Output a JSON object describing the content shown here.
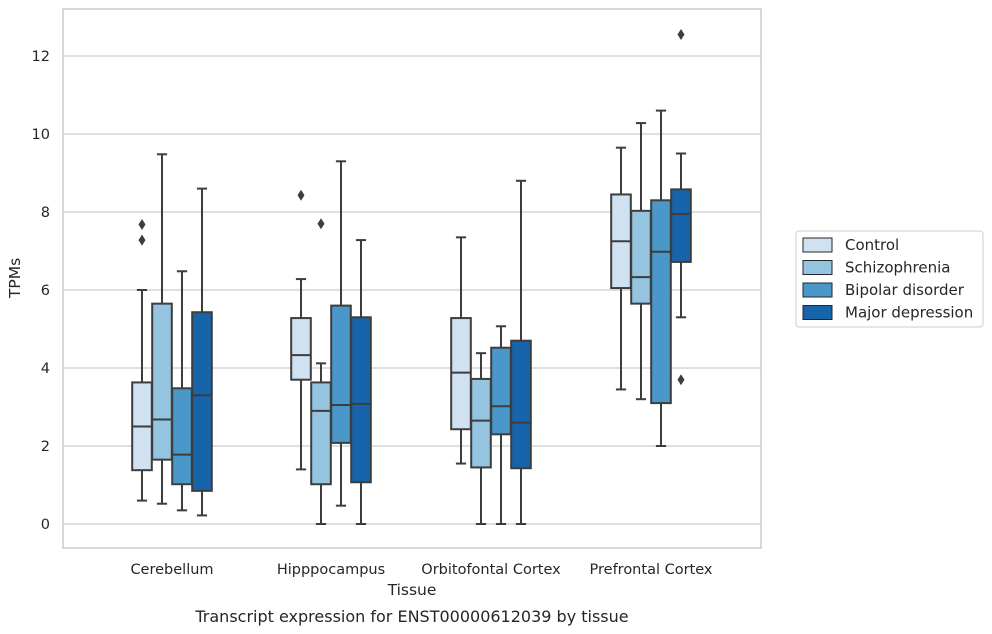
{
  "chart_data": {
    "type": "box",
    "caption": "Transcript expression for ENST00000612039 by tissue",
    "xlabel": "Tissue",
    "ylabel": "TPMs",
    "ylim": [
      -0.6,
      13.2
    ],
    "yticks": [
      0,
      2,
      4,
      6,
      8,
      10,
      12
    ],
    "grid": "horizontal",
    "legend_position": "right",
    "categories": [
      "Cerebellum",
      "Hipppocampus",
      "Orbitofontal Cortex",
      "Prefrontal Cortex"
    ],
    "series": [
      {
        "name": "Control",
        "color": "#d0e1f2",
        "boxes": [
          {
            "whislo": 0.6,
            "q1": 1.38,
            "med": 2.5,
            "q3": 3.63,
            "whishi": 6.0,
            "fliers": [
              7.28,
              7.68
            ]
          },
          {
            "whislo": 1.4,
            "q1": 3.7,
            "med": 4.33,
            "q3": 5.28,
            "whishi": 6.28,
            "fliers": [
              8.43
            ]
          },
          {
            "whislo": 1.55,
            "q1": 2.43,
            "med": 3.88,
            "q3": 5.28,
            "whishi": 7.35,
            "fliers": []
          },
          {
            "whislo": 3.45,
            "q1": 6.05,
            "med": 7.25,
            "q3": 8.45,
            "whishi": 9.65,
            "fliers": []
          }
        ]
      },
      {
        "name": "Schizophrenia",
        "color": "#94c4df",
        "boxes": [
          {
            "whislo": 0.52,
            "q1": 1.65,
            "med": 2.68,
            "q3": 5.65,
            "whishi": 9.48,
            "fliers": []
          },
          {
            "whislo": 0.0,
            "q1": 1.02,
            "med": 2.9,
            "q3": 3.63,
            "whishi": 4.12,
            "fliers": [
              7.7
            ]
          },
          {
            "whislo": 0.0,
            "q1": 1.45,
            "med": 2.65,
            "q3": 3.72,
            "whishi": 4.38,
            "fliers": []
          },
          {
            "whislo": 3.2,
            "q1": 5.65,
            "med": 6.33,
            "q3": 8.03,
            "whishi": 10.28,
            "fliers": []
          }
        ]
      },
      {
        "name": "Bipolar disorder",
        "color": "#4a98c9",
        "boxes": [
          {
            "whislo": 0.35,
            "q1": 1.02,
            "med": 1.78,
            "q3": 3.48,
            "whishi": 6.48,
            "fliers": []
          },
          {
            "whislo": 0.47,
            "q1": 2.08,
            "med": 3.05,
            "q3": 5.6,
            "whishi": 9.3,
            "fliers": []
          },
          {
            "whislo": 0.0,
            "q1": 2.3,
            "med": 3.02,
            "q3": 4.52,
            "whishi": 5.07,
            "fliers": []
          },
          {
            "whislo": 2.0,
            "q1": 3.1,
            "med": 6.98,
            "q3": 8.3,
            "whishi": 10.6,
            "fliers": []
          }
        ]
      },
      {
        "name": "Major depression",
        "color": "#1764ab",
        "boxes": [
          {
            "whislo": 0.22,
            "q1": 0.85,
            "med": 3.3,
            "q3": 5.43,
            "whishi": 8.6,
            "fliers": []
          },
          {
            "whislo": 0.0,
            "q1": 1.07,
            "med": 3.08,
            "q3": 5.3,
            "whishi": 7.28,
            "fliers": []
          },
          {
            "whislo": 0.0,
            "q1": 1.43,
            "med": 2.6,
            "q3": 4.7,
            "whishi": 8.8,
            "fliers": []
          },
          {
            "whislo": 5.3,
            "q1": 6.72,
            "med": 7.95,
            "q3": 8.58,
            "whishi": 9.5,
            "fliers": [
              3.7,
              12.55
            ]
          }
        ]
      }
    ]
  }
}
